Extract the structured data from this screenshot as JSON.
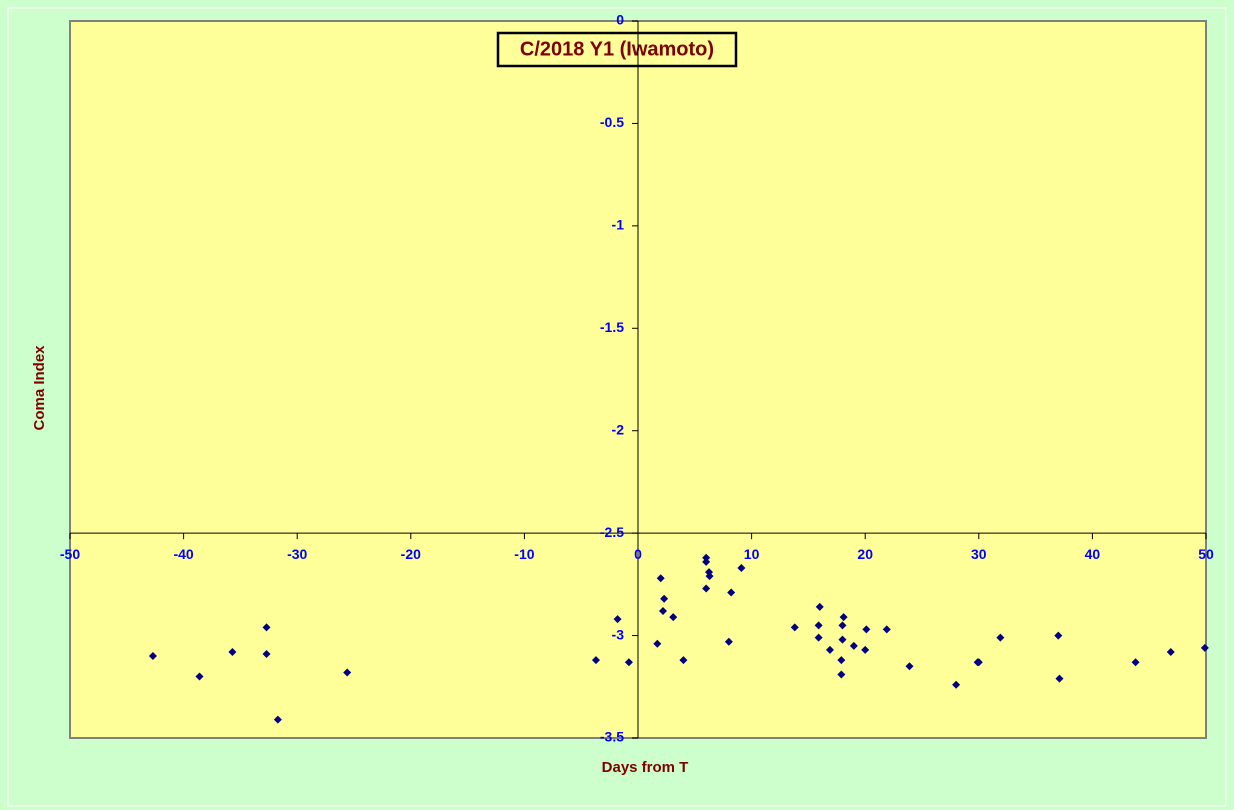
{
  "chart_data": {
    "type": "scatter",
    "title": "C/2018 Y1 (Iwamoto)",
    "x_label": "Days from  T",
    "y_label": "Coma Index",
    "xlim": [
      -50,
      50
    ],
    "xticks": [
      -50,
      -40,
      -30,
      -20,
      -10,
      0,
      10,
      20,
      30,
      40,
      50
    ],
    "ylim": [
      -3.5,
      0
    ],
    "yticks": [
      0,
      -0.5,
      -1,
      -1.5,
      -2,
      -2.5,
      -3,
      -3.5
    ],
    "x_axis_crosses_y": -2.5,
    "y_axis_crosses_x": 0,
    "series": [
      {
        "color": "#000080",
        "x": [
          -42.7,
          -38.6,
          -35.7,
          -32.7,
          -32.7,
          -31.7,
          -25.6,
          -3.7,
          -1.8,
          -0.8,
          1.7,
          2.0,
          2.2,
          2.3,
          3.1,
          4.0,
          6.0,
          6.0,
          6.25,
          6.3,
          6.0,
          8.0,
          8.2,
          9.1,
          13.8,
          16.0,
          15.9,
          15.9,
          16.9,
          18.1,
          18.0,
          18.0,
          17.9,
          17.9,
          19.0,
          20.0,
          20.1,
          21.9,
          23.9,
          28.0,
          29.9,
          30.0,
          31.9,
          37.0,
          37.1,
          43.8,
          46.9,
          49.9
        ],
        "values": [
          -3.1,
          -3.2,
          -3.08,
          -2.96,
          -3.09,
          -3.41,
          -3.18,
          -3.12,
          -2.92,
          -3.13,
          -3.04,
          -2.72,
          -2.88,
          -2.82,
          -2.91,
          -3.12,
          -2.62,
          -2.64,
          -2.69,
          -2.71,
          -2.77,
          -3.03,
          -2.79,
          -2.67,
          -2.96,
          -2.86,
          -2.95,
          -3.01,
          -3.07,
          -2.91,
          -2.95,
          -3.02,
          -3.12,
          -3.19,
          -3.05,
          -3.07,
          -2.97,
          -2.97,
          -3.15,
          -3.24,
          -3.13,
          -3.13,
          -3.01,
          -3.0,
          -3.21,
          -3.13,
          -3.08,
          -3.06
        ]
      }
    ]
  }
}
